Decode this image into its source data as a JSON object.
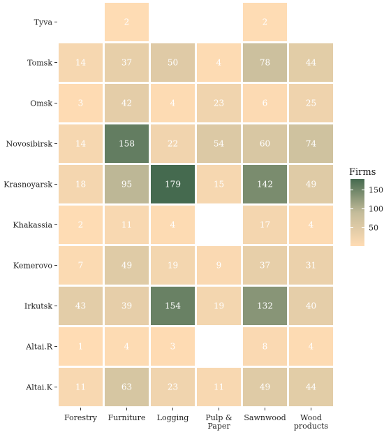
{
  "chart_data": {
    "type": "heatmap",
    "title": "",
    "xlabel": "",
    "ylabel": "",
    "x_categories": [
      "Forestry",
      "Furniture",
      "Logging",
      "Pulp & Paper",
      "Sawnwood",
      "Wood products"
    ],
    "y_categories": [
      "Tyva",
      "Tomsk",
      "Omsk",
      "Novosibirsk",
      "Krasnoyarsk",
      "Khakassia",
      "Kemerovo",
      "Irkutsk",
      "Altai.R",
      "Altai.K"
    ],
    "values": [
      [
        null,
        2,
        null,
        null,
        2,
        null
      ],
      [
        14,
        37,
        50,
        4,
        78,
        44
      ],
      [
        3,
        42,
        4,
        23,
        6,
        25
      ],
      [
        14,
        158,
        22,
        54,
        60,
        74
      ],
      [
        18,
        95,
        179,
        15,
        142,
        49
      ],
      [
        2,
        11,
        4,
        null,
        17,
        4
      ],
      [
        7,
        49,
        19,
        9,
        37,
        31
      ],
      [
        43,
        39,
        154,
        19,
        132,
        40
      ],
      [
        1,
        4,
        3,
        null,
        8,
        4
      ],
      [
        11,
        63,
        23,
        11,
        49,
        44
      ]
    ],
    "legend": {
      "title": "Firms",
      "ticks": [
        50,
        100,
        150
      ],
      "range": [
        1,
        179
      ],
      "colors": [
        "#ffdcb4",
        "#c4bc9a",
        "#456a4f"
      ]
    }
  }
}
